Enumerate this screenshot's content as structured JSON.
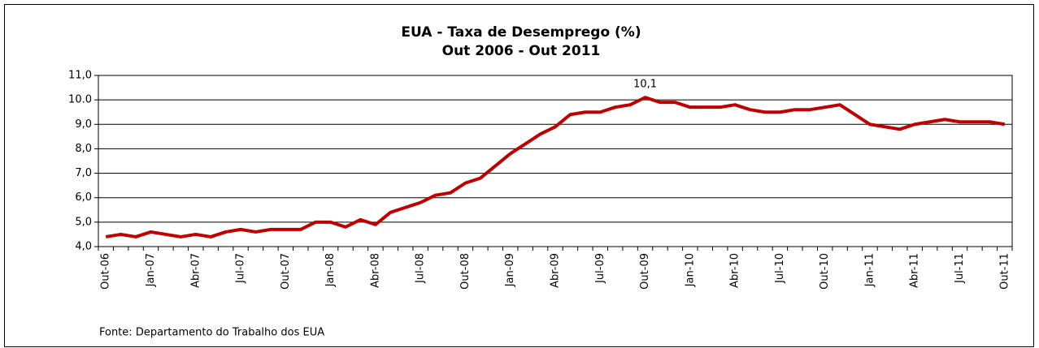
{
  "chart_data": {
    "type": "line",
    "title": "EUA - Taxa de Desemprego (%)",
    "subtitle": "Out 2006 - Out 2011",
    "source": "Fonte: Departamento do Trabalho dos EUA",
    "categories": [
      "Out-06",
      null,
      null,
      "Jan-07",
      null,
      null,
      "Abr-07",
      null,
      null,
      "Jul-07",
      null,
      null,
      "Out-07",
      null,
      null,
      "Jan-08",
      null,
      null,
      "Abr-08",
      null,
      null,
      "Jul-08",
      null,
      null,
      "Out-08",
      null,
      null,
      "Jan-09",
      null,
      null,
      "Abr-09",
      null,
      null,
      "Jul-09",
      null,
      null,
      "Out-09",
      null,
      null,
      "Jan-10",
      null,
      null,
      "Abr-10",
      null,
      null,
      "Jul-10",
      null,
      null,
      "Out-10",
      null,
      null,
      "Jan-11",
      null,
      null,
      "Abr-11",
      null,
      null,
      "Jul-11",
      null,
      null,
      "Out-11"
    ],
    "series": [
      {
        "name": "Taxa de Desemprego",
        "color": "#c00000",
        "values": [
          4.4,
          4.5,
          4.4,
          4.6,
          4.5,
          4.4,
          4.5,
          4.4,
          4.6,
          4.7,
          4.6,
          4.7,
          4.7,
          4.7,
          5.0,
          5.0,
          4.8,
          5.1,
          4.9,
          5.4,
          5.6,
          5.8,
          6.1,
          6.2,
          6.6,
          6.8,
          7.3,
          7.8,
          8.2,
          8.6,
          8.9,
          9.4,
          9.5,
          9.5,
          9.7,
          9.8,
          10.1,
          9.9,
          9.9,
          9.7,
          9.7,
          9.7,
          9.8,
          9.6,
          9.5,
          9.5,
          9.6,
          9.6,
          9.7,
          9.8,
          9.4,
          9.0,
          8.9,
          8.8,
          9.0,
          9.1,
          9.2,
          9.1,
          9.1,
          9.1,
          9.0
        ],
        "value_labels": [
          null,
          null,
          null,
          null,
          null,
          null,
          null,
          null,
          null,
          null,
          null,
          null,
          null,
          null,
          null,
          null,
          null,
          null,
          null,
          null,
          null,
          null,
          null,
          null,
          null,
          null,
          null,
          null,
          null,
          null,
          null,
          null,
          null,
          null,
          null,
          null,
          "10,1",
          null,
          null,
          null,
          null,
          null,
          null,
          null,
          null,
          null,
          null,
          null,
          null,
          null,
          null,
          null,
          null,
          null,
          null,
          null,
          null,
          null,
          null,
          null,
          null
        ]
      }
    ],
    "ylim": [
      4,
      11
    ],
    "yticks": [
      {
        "value": 4,
        "label": "4,0"
      },
      {
        "value": 5,
        "label": "5,0"
      },
      {
        "value": 6,
        "label": "6,0"
      },
      {
        "value": 7,
        "label": "7,0"
      },
      {
        "value": 8,
        "label": "8,0"
      },
      {
        "value": 9,
        "label": "9,0"
      },
      {
        "value": 10,
        "label": "10.0"
      },
      {
        "value": 11,
        "label": "11,0"
      }
    ],
    "grid": true
  }
}
